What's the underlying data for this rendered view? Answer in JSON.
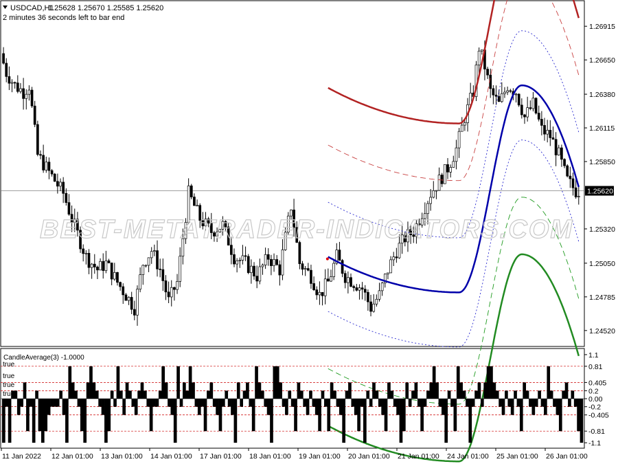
{
  "header": {
    "symbol": "USDCAD,H1",
    "ohlc": "1.25628 1.25670 1.25585 1.25620",
    "timer": "2 minutes 36 seconds left to bar end"
  },
  "watermark": "BEST-METATRADER-INDICATORS.COM",
  "colors": {
    "upper_solid": "#b22222",
    "upper_dash": "#c84040",
    "mid": "#0000aa",
    "mid_dot": "#2b2bd0",
    "lower_dash": "#1e9a1e",
    "lower_solid": "#228b22",
    "bid_line": "#808080",
    "ref_lines": "#cc0000",
    "histogram": "#000000"
  },
  "chart_data": [
    {
      "type": "candlestick",
      "series_name": "USDCAD,H1",
      "ylim": [
        1.244,
        1.271
      ],
      "yticks": [
        "1.26915",
        "1.26650",
        "1.26380",
        "1.26115",
        "1.25850",
        "1.25320",
        "1.25050",
        "1.24785",
        "1.24520"
      ],
      "current_price": "1.25620",
      "xticks": [
        "11 Jan 2022",
        "12 Jan 01:00",
        "13 Jan 01:00",
        "14 Jan 01:00",
        "17 Jan 01:00",
        "18 Jan 01:00",
        "19 Jan 01:00",
        "20 Jan 01:00",
        "21 Jan 01:00",
        "24 Jan 01:00",
        "25 Jan 01:00",
        "26 Jan 01:00"
      ],
      "price_path": [
        [
          0,
          1.267
        ],
        [
          2,
          1.2655
        ],
        [
          5,
          1.2645
        ],
        [
          8,
          1.264
        ],
        [
          10,
          1.2645
        ],
        [
          13,
          1.259
        ],
        [
          16,
          1.258
        ],
        [
          19,
          1.257
        ],
        [
          22,
          1.256
        ],
        [
          25,
          1.254
        ],
        [
          30,
          1.251
        ],
        [
          34,
          1.25
        ],
        [
          37,
          1.2505
        ],
        [
          41,
          1.249
        ],
        [
          44,
          1.248
        ],
        [
          47,
          1.247
        ],
        [
          50,
          1.2505
        ],
        [
          53,
          1.2515
        ],
        [
          56,
          1.25
        ],
        [
          59,
          1.2475
        ],
        [
          62,
          1.249
        ],
        [
          66,
          1.256
        ],
        [
          70,
          1.254
        ],
        [
          74,
          1.253
        ],
        [
          78,
          1.2535
        ],
        [
          82,
          1.251
        ],
        [
          86,
          1.2505
        ],
        [
          90,
          1.2495
        ],
        [
          94,
          1.251
        ],
        [
          98,
          1.25
        ],
        [
          102,
          1.255
        ],
        [
          105,
          1.2505
        ],
        [
          109,
          1.2495
        ],
        [
          112,
          1.248
        ],
        [
          115,
          1.249
        ],
        [
          118,
          1.251
        ],
        [
          121,
          1.2495
        ],
        [
          124,
          1.249
        ],
        [
          127,
          1.2485
        ],
        [
          130,
          1.247
        ],
        [
          133,
          1.248
        ],
        [
          136,
          1.25
        ],
        [
          139,
          1.2515
        ],
        [
          142,
          1.2525
        ],
        [
          145,
          1.253
        ],
        [
          148,
          1.2545
        ],
        [
          151,
          1.256
        ],
        [
          154,
          1.257
        ],
        [
          157,
          1.258
        ],
        [
          160,
          1.2595
        ],
        [
          163,
          1.262
        ],
        [
          166,
          1.264
        ],
        [
          168,
          1.2675
        ],
        [
          170,
          1.266
        ],
        [
          172,
          1.264
        ],
        [
          175,
          1.263
        ],
        [
          178,
          1.2645
        ],
        [
          181,
          1.264
        ],
        [
          184,
          1.262
        ],
        [
          187,
          1.263
        ],
        [
          190,
          1.261
        ],
        [
          193,
          1.2605
        ],
        [
          196,
          1.259
        ],
        [
          199,
          1.257
        ],
        [
          202,
          1.2562
        ]
      ],
      "bands": {
        "x_start": 114,
        "x_end": 202,
        "x_min": 160,
        "mid_start": 1.251,
        "mid_min": 1.2482,
        "mid_peak": 1.2645,
        "mid_end": 1.2565,
        "peak_x": 182,
        "offsets": {
          "upper_solid": 0.0133,
          "upper_dash": 0.0088,
          "upper_dot": 0.0043,
          "lower_dot": -0.0043,
          "lower_dash": -0.0088,
          "lower_solid": -0.0133
        }
      }
    },
    {
      "type": "bar",
      "title": "CandleAverage(3) -1.0000",
      "ylim": [
        -1.15,
        1.15
      ],
      "yticks": [
        "1.1",
        "0.81",
        "0.405",
        "0.2",
        "0.00",
        "-0.2",
        "-0.405",
        "-0.81",
        "-1.1"
      ],
      "ref_levels": [
        0.81,
        0.405,
        0.2,
        -0.2,
        -0.405,
        -0.81
      ],
      "left_labels": [
        "true",
        "true",
        "true",
        "true"
      ],
      "values": [
        -1.1,
        -0.2,
        -1.1,
        0.2,
        0.2,
        -0.405,
        -0.2,
        0.405,
        -0.81,
        -0.2,
        -1.1,
        0.2,
        -0.81,
        -1.1,
        -0.81,
        -0.405,
        -0.2,
        -0.2,
        -0.2,
        0.2,
        -0.405,
        -1.1,
        0.81,
        0.405,
        0.2,
        -0.2,
        -0.81,
        -1.1,
        0.405,
        0.81,
        0.405,
        0.2,
        -0.2,
        -0.405,
        -1.1,
        -0.81,
        0.2,
        -0.2,
        0.81,
        0.2,
        -0.405,
        0.405,
        0.2,
        -0.2,
        -0.405,
        0.2,
        0.405,
        0.2,
        -0.2,
        -0.81,
        -0.2,
        -0.2,
        0.2,
        0.81,
        0.405,
        -0.2,
        -0.405,
        -1.1,
        0.81,
        -0.2,
        0.405,
        0.2,
        0.81,
        0.405,
        -0.2,
        -0.405,
        -0.2,
        -0.81,
        0.2,
        0.405,
        -0.2,
        -0.405,
        -0.81,
        -0.2,
        0.2,
        -0.2,
        -0.405,
        -1.1,
        0.405,
        -0.2,
        0.2,
        0.405,
        -0.2,
        -0.81,
        0.81,
        0.405,
        0.2,
        -0.2,
        -0.405,
        -1.1,
        0.81,
        0.81,
        0.405,
        -0.2,
        -0.405,
        0.2,
        -0.2,
        -0.81,
        0.405,
        0.2,
        -0.2,
        -0.405,
        0.2,
        -0.2,
        -0.405,
        -0.81,
        0.2,
        -0.2,
        -0.81,
        0.405,
        0.2,
        -0.2,
        -0.405,
        -1.1,
        0.2,
        0.405,
        -0.2,
        -0.405,
        -0.81,
        -0.2,
        -1.1,
        0.2,
        -0.2,
        0.405,
        0.2,
        -0.2,
        -0.405,
        -0.81,
        0.405,
        0.2,
        -0.2,
        -0.405,
        -1.1,
        -0.81,
        0.405,
        -0.2,
        0.2,
        0.405,
        -0.2,
        -0.81,
        -0.2,
        0.2,
        0.405,
        0.81,
        0.405,
        -0.2,
        -0.405,
        -1.1,
        0.2,
        -0.2,
        -0.81,
        0.81,
        0.405,
        0.2,
        -0.2,
        -1.1,
        -0.2,
        0.2,
        0.405,
        -0.2,
        0.405,
        0.81,
        0.81,
        0.405,
        0.2,
        -0.2,
        -0.405,
        0.2,
        -0.2,
        -0.405,
        0.2,
        -0.2,
        -0.81,
        0.405,
        0.2,
        -0.2,
        -0.405,
        -0.2,
        0.2,
        -0.2,
        -0.405,
        0.81,
        0.2,
        -0.2,
        -0.405,
        -0.81,
        0.2,
        0.405,
        -0.2,
        0.2,
        -0.2,
        -0.81,
        -1.1
      ]
    }
  ]
}
